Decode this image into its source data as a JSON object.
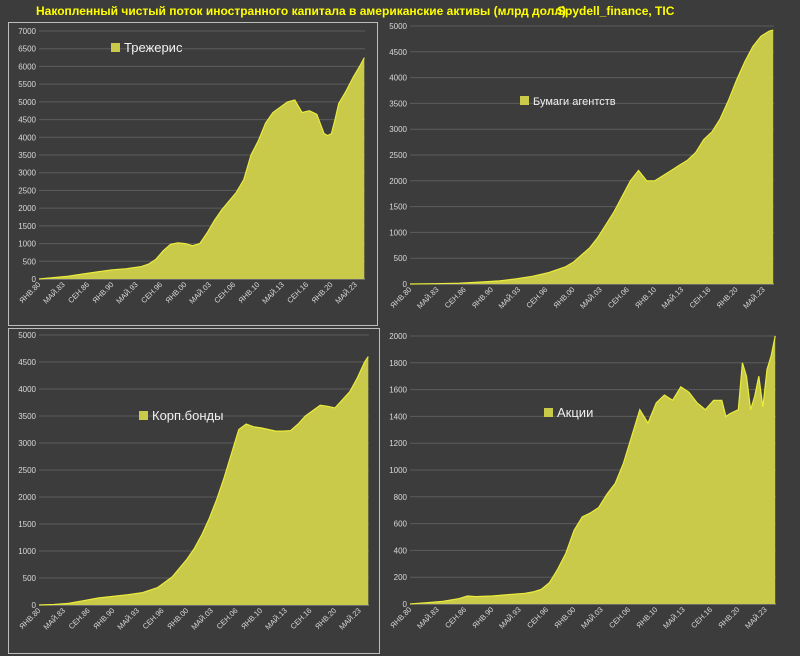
{
  "header": {
    "title": "Накопленный чистый поток иностранного капитала в американские активы (млрд долл)",
    "source": "Spydell_finance, TIC"
  },
  "colors": {
    "fill": "#c9c94a",
    "line": "#ecec3a",
    "grid": "#5c5c5c",
    "text": "#d8d8d8",
    "background": "#3c3c3c"
  },
  "chart_data": [
    {
      "type": "area",
      "legend": "Трежерис",
      "legend_position": "top-left",
      "x_ticks": [
        "ЯНВ.80",
        "МАЙ.83",
        "СЕН.86",
        "ЯНВ.90",
        "МАЙ.93",
        "СЕН.96",
        "ЯНВ.00",
        "МАЙ.03",
        "СЕН.06",
        "ЯНВ.10",
        "МАЙ.13",
        "СЕН.16",
        "ЯНВ.20",
        "МАЙ.23"
      ],
      "ylim": [
        0,
        7000
      ],
      "y_ticks": [
        "0",
        "500",
        "1000",
        "1500",
        "2000",
        "2500",
        "3000",
        "3500",
        "4000",
        "4500",
        "5000",
        "5500",
        "6000",
        "6500",
        "7000"
      ],
      "grid": true,
      "x": [
        1980,
        1982,
        1984,
        1986,
        1988,
        1990,
        1992,
        1994,
        1995,
        1996,
        1997,
        1998,
        1999,
        2000,
        2001,
        2002,
        2003,
        2004,
        2005,
        2006,
        2007,
        2008,
        2009,
        2010,
        2011,
        2012,
        2013,
        2014,
        2015,
        2016,
        2017,
        2018,
        2019,
        2019.5,
        2020,
        2020.5,
        2021,
        2022,
        2023,
        2024,
        2024.5
      ],
      "values": [
        0,
        40,
        80,
        140,
        200,
        260,
        290,
        350,
        420,
        560,
        800,
        980,
        1020,
        1000,
        940,
        1000,
        1300,
        1650,
        1950,
        2200,
        2450,
        2800,
        3500,
        3900,
        4400,
        4700,
        4850,
        5000,
        5050,
        4700,
        4750,
        4650,
        4100,
        4050,
        4100,
        4500,
        4950,
        5300,
        5700,
        6050,
        6250
      ]
    },
    {
      "type": "area",
      "legend": "Бумаги агентств",
      "legend_position": "center",
      "x_ticks": [
        "ЯНВ.80",
        "МАЙ.83",
        "СЕН.86",
        "ЯНВ.90",
        "МАЙ.93",
        "СЕН.96",
        "ЯНВ.00",
        "МАЙ.03",
        "СЕН.06",
        "ЯНВ.10",
        "МАЙ.13",
        "СЕН.16",
        "ЯНВ.20",
        "МАЙ.23"
      ],
      "ylim": [
        0,
        5000
      ],
      "y_ticks": [
        "0",
        "500",
        "1000",
        "1500",
        "2000",
        "2500",
        "3000",
        "3500",
        "4000",
        "4500",
        "5000"
      ],
      "grid": true,
      "x": [
        1980,
        1983,
        1986,
        1989,
        1991,
        1993,
        1995,
        1997,
        1999,
        2000,
        2001,
        2002,
        2003,
        2004,
        2005,
        2006,
        2007,
        2008,
        2009,
        2010,
        2011,
        2012,
        2013,
        2014,
        2015,
        2016,
        2017,
        2018,
        2019,
        2020,
        2021,
        2022,
        2023,
        2024,
        2024.5
      ],
      "values": [
        0,
        5,
        15,
        40,
        60,
        100,
        150,
        220,
        330,
        420,
        560,
        700,
        900,
        1150,
        1400,
        1700,
        2000,
        2200,
        2000,
        2000,
        2100,
        2200,
        2300,
        2400,
        2550,
        2800,
        2950,
        3200,
        3550,
        3950,
        4300,
        4600,
        4800,
        4900,
        4920
      ]
    },
    {
      "type": "area",
      "legend": "Корп.бонды",
      "legend_position": "center",
      "x_ticks": [
        "ЯНВ.80",
        "МАЙ.83",
        "СЕН.86",
        "ЯНВ.90",
        "МАЙ.93",
        "СЕН.96",
        "ЯНВ.00",
        "МАЙ.03",
        "СЕН.06",
        "ЯНВ.10",
        "МАЙ.13",
        "СЕН.16",
        "ЯНВ.20",
        "МАЙ.23"
      ],
      "ylim": [
        0,
        5000
      ],
      "y_ticks": [
        "0",
        "500",
        "1000",
        "1500",
        "2000",
        "2500",
        "3000",
        "3500",
        "4000",
        "4500",
        "5000"
      ],
      "grid": true,
      "x": [
        1980,
        1982,
        1984,
        1986,
        1988,
        1990,
        1992,
        1994,
        1996,
        1998,
        2000,
        2001,
        2002,
        2003,
        2004,
        2005,
        2006,
        2007,
        2008,
        2009,
        2010,
        2011,
        2012,
        2013,
        2014,
        2015,
        2016,
        2017,
        2018,
        2019,
        2020,
        2021,
        2022,
        2023,
        2024,
        2024.5
      ],
      "values": [
        0,
        10,
        30,
        80,
        130,
        160,
        190,
        230,
        320,
        520,
        850,
        1050,
        1300,
        1600,
        1950,
        2350,
        2800,
        3250,
        3350,
        3300,
        3280,
        3250,
        3220,
        3220,
        3230,
        3350,
        3500,
        3600,
        3700,
        3680,
        3650,
        3800,
        3950,
        4200,
        4500,
        4600
      ]
    },
    {
      "type": "area",
      "legend": "Акции",
      "legend_position": "center",
      "x_ticks": [
        "ЯНВ.80",
        "МАЙ.83",
        "СЕН.86",
        "ЯНВ.90",
        "МАЙ.93",
        "СЕН.96",
        "ЯНВ.00",
        "МАЙ.03",
        "СЕН.06",
        "ЯНВ.10",
        "МАЙ.13",
        "СЕН.16",
        "ЯНВ.20",
        "МАЙ.23"
      ],
      "ylim": [
        0,
        2000
      ],
      "y_ticks": [
        "0",
        "200",
        "400",
        "600",
        "800",
        "1000",
        "1200",
        "1400",
        "1600",
        "1800",
        "2000"
      ],
      "grid": true,
      "x": [
        1980,
        1982,
        1984,
        1986,
        1987,
        1988,
        1990,
        1992,
        1994,
        1995,
        1996,
        1997,
        1998,
        1999,
        2000,
        2001,
        2002,
        2003,
        2004,
        2005,
        2006,
        2007,
        2008,
        2009,
        2010,
        2011,
        2012,
        2013,
        2014,
        2015,
        2016,
        2017,
        2018,
        2018.5,
        2019,
        2020,
        2020.5,
        2021,
        2021.5,
        2022,
        2022.5,
        2023,
        2023.5,
        2024,
        2024.5
      ],
      "values": [
        0,
        10,
        20,
        40,
        60,
        55,
        60,
        70,
        80,
        90,
        110,
        160,
        260,
        380,
        550,
        650,
        680,
        720,
        820,
        900,
        1050,
        1250,
        1450,
        1350,
        1500,
        1560,
        1520,
        1620,
        1580,
        1500,
        1450,
        1520,
        1520,
        1400,
        1420,
        1450,
        1800,
        1700,
        1450,
        1550,
        1700,
        1470,
        1750,
        1850,
        2000
      ]
    }
  ]
}
